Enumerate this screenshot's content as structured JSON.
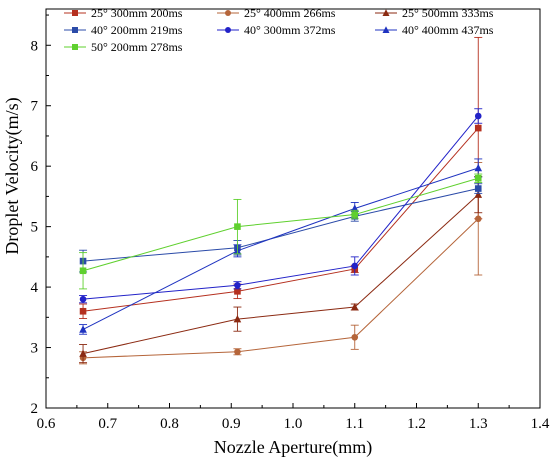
{
  "chart_data": {
    "type": "line",
    "xlabel": "Nozzle Aperture(mm)",
    "ylabel": "Droplet Velocity(m/s)",
    "xlim": [
      0.6,
      1.4
    ],
    "ylim": [
      2,
      8.6
    ],
    "xticks": [
      "0.6",
      "0.7",
      "0.8",
      "0.9",
      "1.0",
      "1.1",
      "1.2",
      "1.3",
      "1.4"
    ],
    "yticks": [
      "2",
      "3",
      "4",
      "5",
      "6",
      "7",
      "8"
    ],
    "legend_position": "top-left",
    "grid": false,
    "x": [
      0.66,
      0.91,
      1.1,
      1.3
    ],
    "series": [
      {
        "name": "25° 300mm 200ms",
        "color": "#b5301f",
        "marker": "square",
        "values": [
          3.6,
          3.93,
          4.3,
          6.63
        ],
        "errors": [
          0.12,
          0.12,
          0.06,
          1.5
        ]
      },
      {
        "name": "25° 400mm 266ms",
        "color": "#b5653a",
        "marker": "circle",
        "values": [
          2.83,
          2.93,
          3.17,
          5.13
        ],
        "errors": [
          0.1,
          0.05,
          0.2,
          0.93
        ]
      },
      {
        "name": "25° 500mm 333ms",
        "color": "#8b2a12",
        "marker": "triangle",
        "values": [
          2.9,
          3.47,
          3.67,
          5.53
        ],
        "errors": [
          0.15,
          0.2,
          0.05,
          0.3
        ]
      },
      {
        "name": "40° 200mm 219ms",
        "color": "#2b4ba8",
        "marker": "square",
        "values": [
          4.43,
          4.65,
          5.17,
          5.63
        ],
        "errors": [
          0.18,
          0.12,
          0.08,
          0.08
        ]
      },
      {
        "name": "40° 300mm 372ms",
        "color": "#2222c8",
        "marker": "circle",
        "values": [
          3.8,
          4.03,
          4.35,
          6.83
        ],
        "errors": [
          0.06,
          0.06,
          0.15,
          0.12
        ]
      },
      {
        "name": "40° 400mm 437ms",
        "color": "#1f33c0",
        "marker": "triangle",
        "values": [
          3.3,
          4.6,
          5.3,
          5.97
        ],
        "errors": [
          0.08,
          0.1,
          0.1,
          0.15
        ]
      },
      {
        "name": "50° 200mm 278ms",
        "color": "#5fd02e",
        "marker": "square",
        "values": [
          4.27,
          5.0,
          5.2,
          5.8
        ],
        "errors": [
          0.3,
          0.45,
          0.07,
          0.07
        ]
      }
    ]
  }
}
